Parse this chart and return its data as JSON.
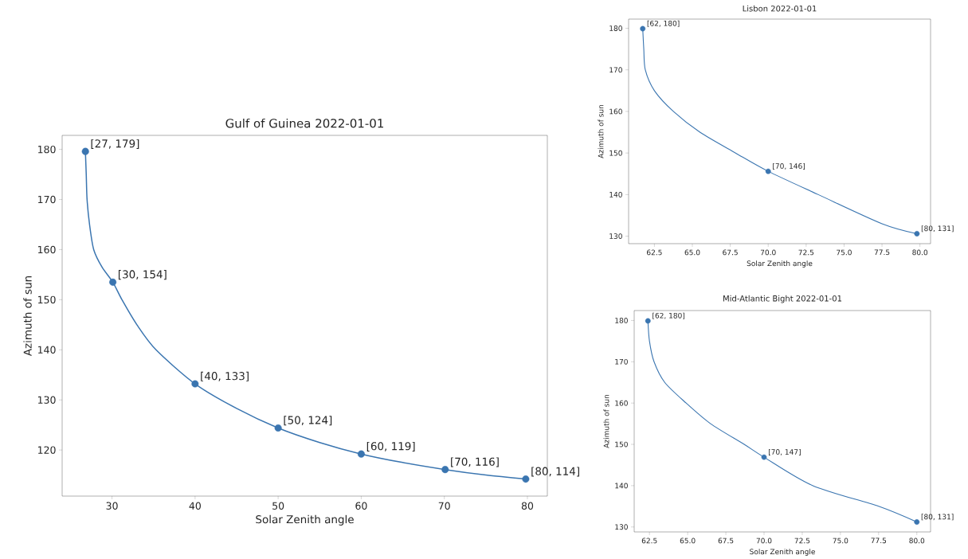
{
  "chart_data": [
    {
      "type": "line",
      "title": "Gulf of Guinea 2022-01-01",
      "xlabel": "Solar Zenith angle",
      "ylabel": "Azimuth of sun",
      "xlim": [
        24,
        82.4
      ],
      "ylim": [
        110.8,
        182.8
      ],
      "xticks": [
        30,
        40,
        50,
        60,
        70,
        80
      ],
      "yticks": [
        120,
        130,
        140,
        150,
        160,
        170,
        180
      ],
      "series": [
        {
          "marker": "none",
          "color": "#3a75b0",
          "x": [
            26.8,
            26.9,
            27.0,
            27.3,
            27.8,
            28.8,
            30.1,
            31.2,
            33,
            35.3,
            40,
            45,
            50,
            55,
            60,
            65,
            70.1,
            75,
            79.8
          ],
          "values": [
            179.6,
            175,
            170,
            165,
            160,
            156.5,
            153.5,
            150,
            145,
            140,
            133.2,
            128.3,
            124.4,
            121.5,
            119.2,
            117.5,
            116.1,
            115,
            114.2
          ]
        },
        {
          "type": "scatter",
          "marker": "circle",
          "color": "#3a75b0",
          "x": [
            26.8,
            30.1,
            40,
            50,
            60,
            70.1,
            79.8
          ],
          "values": [
            179.6,
            153.5,
            133.2,
            124.4,
            119.2,
            116.1,
            114.2
          ],
          "value_labels": [
            "[27, 179]",
            "[30, 154]",
            "[40, 133]",
            "[50, 124]",
            "[60, 119]",
            "[70, 116]",
            "[80, 114]"
          ]
        }
      ]
    },
    {
      "type": "line",
      "title": "Lisbon 2022-01-01",
      "xlabel": "Solar Zenith angle",
      "ylabel": "Azimuth of sun",
      "xlim": [
        60.8,
        80.7
      ],
      "ylim": [
        128.2,
        182.2
      ],
      "xticks": [
        62.5,
        {
          "value": 65,
          "label": "65.0"
        },
        67.5,
        {
          "value": 70,
          "label": "70.0"
        },
        72.5,
        {
          "value": 75,
          "label": "75.0"
        },
        77.5,
        {
          "value": 80,
          "label": "80.0"
        }
      ],
      "yticks": [
        130,
        140,
        150,
        160,
        170,
        180
      ],
      "series": [
        {
          "marker": "none",
          "color": "#3a75b0",
          "x": [
            61.73,
            61.8,
            61.9,
            62.5,
            63.75,
            65.5,
            67.85,
            70.0,
            73.3,
            77.5,
            79.8
          ],
          "values": [
            179.9,
            175,
            170,
            165,
            160,
            155,
            150,
            145.6,
            140,
            133.0,
            130.6
          ]
        },
        {
          "type": "scatter",
          "marker": "circle",
          "color": "#3a75b0",
          "x": [
            61.73,
            70.0,
            79.8
          ],
          "values": [
            179.9,
            145.6,
            130.6
          ],
          "value_labels": [
            "[62, 180]",
            "[70, 146]",
            "[80, 131]"
          ]
        }
      ]
    },
    {
      "type": "line",
      "title": "Mid-Atlantic Bight 2022-01-01",
      "xlabel": "Solar Zenith angle",
      "ylabel": "Azimuth of sun",
      "xlim": [
        61.5,
        80.9
      ],
      "ylim": [
        128.8,
        182.4
      ],
      "xticks": [
        62.5,
        {
          "value": 65,
          "label": "65.0"
        },
        67.5,
        {
          "value": 70,
          "label": "70.0"
        },
        72.5,
        {
          "value": 75,
          "label": "75.0"
        },
        77.5,
        {
          "value": 80,
          "label": "80.0"
        }
      ],
      "yticks": [
        130,
        140,
        150,
        160,
        170,
        180
      ],
      "series": [
        {
          "marker": "none",
          "color": "#3a75b0",
          "x": [
            62.4,
            62.5,
            62.8,
            63.5,
            64.9,
            66.5,
            68.7,
            70.0,
            73.2,
            77.5,
            80.0
          ],
          "values": [
            179.9,
            175,
            170,
            165,
            160,
            155,
            150,
            146.9,
            140,
            135,
            131.2
          ]
        },
        {
          "type": "scatter",
          "marker": "circle",
          "color": "#3a75b0",
          "x": [
            62.4,
            70.0,
            80.0
          ],
          "values": [
            179.9,
            146.9,
            131.2
          ],
          "value_labels": [
            "[62, 180]",
            "[70, 147]",
            "[80, 131]"
          ]
        }
      ]
    }
  ]
}
